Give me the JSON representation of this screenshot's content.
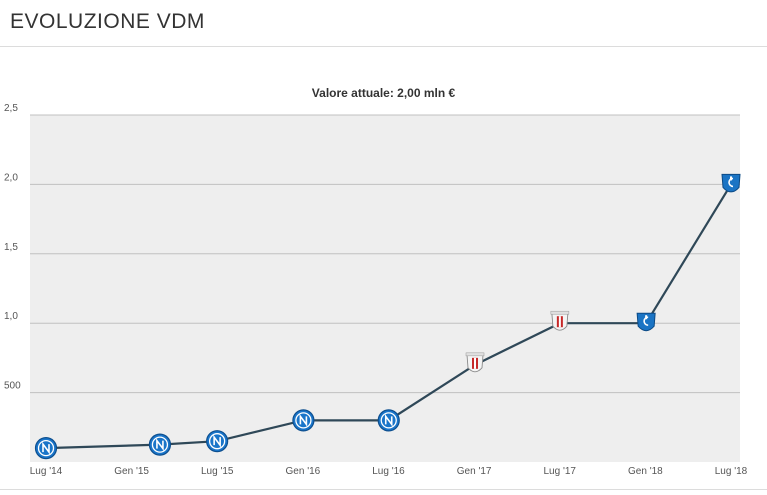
{
  "header": {
    "title": "EVOLUZIONE VDM"
  },
  "chart_data": {
    "type": "line",
    "title": "Valore attuale: 2,00 mln €",
    "xlabel": "",
    "ylabel": "",
    "x_ticks": [
      "Lug '14",
      "Gen '15",
      "Lug '15",
      "Gen '16",
      "Lug '16",
      "Gen '17",
      "Lug '17",
      "Gen '18",
      "Lug '18"
    ],
    "y_ticks": [
      "500",
      "1,0",
      "1,5",
      "2,0",
      "2,5"
    ],
    "y_unit": "mln €",
    "ylim": [
      0,
      2.5
    ],
    "grid": true,
    "series": [
      {
        "color": "#2f4858",
        "points": [
          {
            "x": "2014-07",
            "y": 0.1,
            "club": "napoli-logo"
          },
          {
            "x": "2015-03",
            "y": 0.125,
            "club": "napoli-logo"
          },
          {
            "x": "2015-07",
            "y": 0.15,
            "club": "napoli-logo"
          },
          {
            "x": "2016-01",
            "y": 0.3,
            "club": "napoli-logo"
          },
          {
            "x": "2016-07",
            "y": 0.3,
            "club": "napoli-logo"
          },
          {
            "x": "2017-01",
            "y": 0.7,
            "club": "crest-red-white-logo"
          },
          {
            "x": "2017-07",
            "y": 1.0,
            "club": "crest-red-white-logo"
          },
          {
            "x": "2018-01",
            "y": 1.0,
            "club": "empoli-logo"
          },
          {
            "x": "2018-07",
            "y": 2.0,
            "club": "empoli-logo"
          }
        ]
      }
    ]
  }
}
